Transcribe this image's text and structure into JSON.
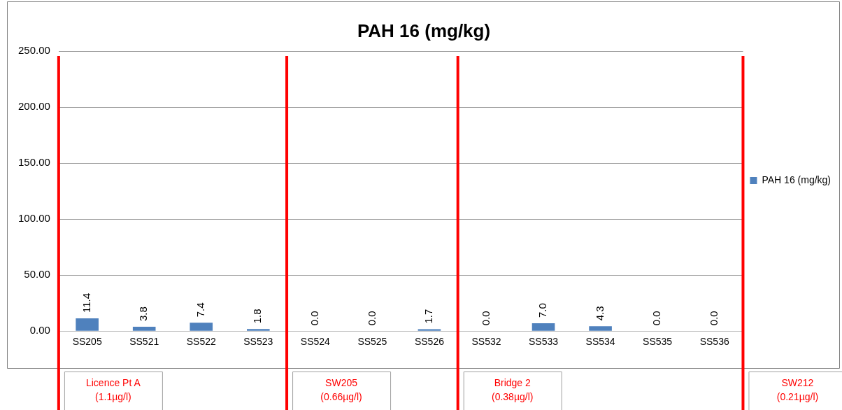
{
  "chart_data": {
    "type": "bar",
    "title": "PAH 16 (mg/kg)",
    "categories": [
      "SS205",
      "SS521",
      "SS522",
      "SS523",
      "SS524",
      "SS525",
      "SS526",
      "SS532",
      "SS533",
      "SS534",
      "SS535",
      "SS536"
    ],
    "series": [
      {
        "name": "PAH 16 (mg/kg)",
        "color": "#4f81bd",
        "values": [
          11.4,
          3.8,
          7.4,
          1.8,
          0.0,
          0.0,
          1.7,
          0.0,
          7.0,
          4.3,
          0.0,
          0.0
        ],
        "value_labels": [
          "11.4",
          "3.8",
          "7.4",
          "1.8",
          "0.0",
          "0.0",
          "1.7",
          "0.0",
          "7.0",
          "4.3",
          "0.0",
          "0.0"
        ]
      }
    ],
    "ylim": [
      0,
      250
    ],
    "yticks": [
      {
        "value": 0,
        "label": "0.00"
      },
      {
        "value": 50,
        "label": "50.00"
      },
      {
        "value": 100,
        "label": "100.00"
      },
      {
        "value": 150,
        "label": "150.00"
      },
      {
        "value": 200,
        "label": "200.00"
      },
      {
        "value": 250,
        "label": "250.00"
      }
    ],
    "grid": "y",
    "legend": "right",
    "annotations": [
      "Licence Pt A\n(1.1µg/l)",
      "SW205\n(0.66µg/l)",
      "Bridge 2\n(0.38µg/l)",
      "SW212\n(0.21µg/l)"
    ]
  }
}
